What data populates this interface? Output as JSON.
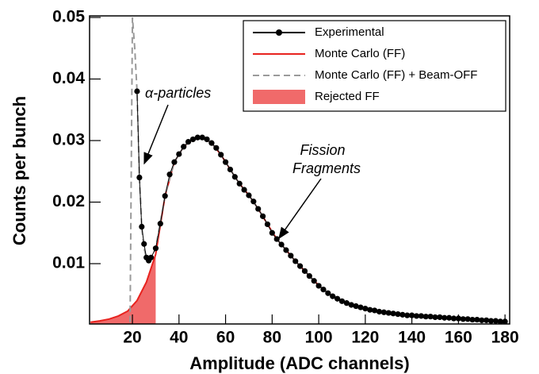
{
  "chart_data": {
    "type": "scatter-line",
    "x_label": "Amplitude (ADC channels)",
    "y_label": "Counts per bunch",
    "xlim": [
      1.6,
      182
    ],
    "ylim": [
      0.0002,
      0.05
    ],
    "xticks": [
      20,
      40,
      60,
      80,
      100,
      120,
      140,
      160,
      180
    ],
    "yticks": [
      0.01,
      0.02,
      0.03,
      0.04,
      0.05
    ],
    "legend": "top-right",
    "annotations": [
      {
        "text": "α-particles"
      },
      {
        "text": "Fission"
      },
      {
        "text": "Fragments"
      }
    ],
    "series": [
      {
        "name": "Experimental",
        "style": "markers",
        "color": "#000000",
        "x": [
          22,
          23,
          24,
          25,
          26,
          27,
          28,
          30,
          32,
          34,
          36,
          38,
          40,
          42,
          44,
          46,
          48,
          50,
          52,
          54,
          56,
          58,
          60,
          62,
          64,
          66,
          68,
          70,
          72,
          74,
          76,
          78,
          80,
          82,
          84,
          86,
          88,
          90,
          92,
          94,
          96,
          98,
          100,
          102,
          104,
          106,
          108,
          110,
          112,
          114,
          116,
          118,
          120,
          122,
          124,
          126,
          128,
          130,
          132,
          134,
          136,
          138,
          140,
          142,
          144,
          146,
          148,
          150,
          152,
          154,
          156,
          158,
          160,
          162,
          164,
          166,
          168,
          170,
          172,
          174,
          176,
          178,
          180
        ],
        "values": [
          0.038,
          0.024,
          0.016,
          0.0132,
          0.011,
          0.0105,
          0.011,
          0.0125,
          0.0165,
          0.021,
          0.0245,
          0.0265,
          0.0278,
          0.029,
          0.0298,
          0.0302,
          0.0305,
          0.0305,
          0.0302,
          0.0296,
          0.0288,
          0.0277,
          0.0265,
          0.0253,
          0.0241,
          0.023,
          0.022,
          0.0211,
          0.0201,
          0.0189,
          0.0177,
          0.0164,
          0.015,
          0.014,
          0.0131,
          0.0122,
          0.0113,
          0.0104,
          0.0096,
          0.0088,
          0.008,
          0.0072,
          0.0064,
          0.0058,
          0.0052,
          0.0047,
          0.0043,
          0.0039,
          0.0036,
          0.0033,
          0.0031,
          0.0029,
          0.0027,
          0.0025,
          0.0024,
          0.0022,
          0.0021,
          0.002,
          0.0019,
          0.0018,
          0.0017,
          0.0016,
          0.0016,
          0.0015,
          0.0015,
          0.0014,
          0.0014,
          0.0013,
          0.0013,
          0.0012,
          0.0012,
          0.0011,
          0.0011,
          0.001,
          0.001,
          0.0009,
          0.0009,
          0.0008,
          0.0008,
          0.0007,
          0.0007,
          0.0006,
          0.0006
        ]
      },
      {
        "name": "Monte Carlo (FF)",
        "style": "line",
        "color": "#e8231f",
        "x": [
          2,
          6,
          10,
          14,
          18,
          22,
          26,
          30,
          34,
          38,
          42,
          46,
          50,
          54,
          58,
          62,
          66,
          70,
          74,
          78,
          82,
          86,
          90,
          94,
          98,
          102,
          106,
          110,
          114,
          118,
          122,
          126,
          130,
          134,
          138,
          142,
          146,
          150,
          154,
          158,
          162,
          166,
          170,
          174,
          178
        ],
        "values": [
          0.0005,
          0.0007,
          0.001,
          0.0015,
          0.0023,
          0.004,
          0.007,
          0.0115,
          0.021,
          0.0265,
          0.029,
          0.0302,
          0.0305,
          0.0296,
          0.0277,
          0.0253,
          0.023,
          0.0211,
          0.0189,
          0.0164,
          0.014,
          0.0122,
          0.0104,
          0.0088,
          0.0072,
          0.0058,
          0.0047,
          0.0039,
          0.0033,
          0.0029,
          0.0025,
          0.0022,
          0.002,
          0.0018,
          0.0016,
          0.0015,
          0.0014,
          0.0013,
          0.0012,
          0.0011,
          0.001,
          0.0009,
          0.0008,
          0.0007,
          0.0006
        ]
      },
      {
        "name": "Monte Carlo (FF) + Beam-OFF",
        "style": "dashed",
        "color": "#9a9a9a",
        "x": [
          19,
          20,
          21,
          22,
          23,
          24,
          25,
          26,
          28,
          30,
          34,
          38,
          42,
          46,
          50,
          54,
          58,
          62,
          66,
          70,
          74,
          78,
          82,
          86,
          90,
          94,
          98,
          102,
          106,
          110,
          114,
          118,
          122,
          126,
          130,
          134,
          138,
          142,
          146,
          150,
          154,
          158,
          162,
          166,
          170,
          174,
          178
        ],
        "values": [
          0.0005,
          0.05,
          0.045,
          0.038,
          0.024,
          0.016,
          0.0125,
          0.011,
          0.0108,
          0.0125,
          0.021,
          0.0265,
          0.029,
          0.0302,
          0.0305,
          0.0296,
          0.0277,
          0.0253,
          0.023,
          0.0211,
          0.0189,
          0.0164,
          0.014,
          0.0122,
          0.0104,
          0.0088,
          0.0072,
          0.0058,
          0.0047,
          0.0039,
          0.0033,
          0.0029,
          0.0025,
          0.0022,
          0.002,
          0.0018,
          0.0016,
          0.0015,
          0.0014,
          0.0013,
          0.0012,
          0.0011,
          0.001,
          0.0009,
          0.0008,
          0.0007,
          0.0006
        ]
      },
      {
        "name": "Rejected FF",
        "style": "area",
        "color": "#f06a6a",
        "x": [
          2,
          6,
          10,
          14,
          18,
          22,
          26,
          30
        ],
        "values": [
          0.0005,
          0.0007,
          0.001,
          0.0015,
          0.0023,
          0.004,
          0.007,
          0.0115
        ]
      }
    ]
  }
}
